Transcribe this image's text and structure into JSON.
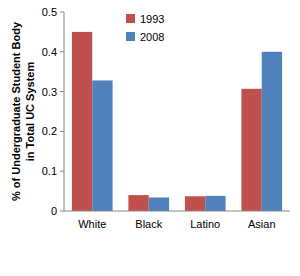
{
  "chart_data": {
    "type": "bar",
    "y_label": "% of Undergraduate Student Body in Total UC System",
    "categories": [
      "White",
      "Black",
      "Latino",
      "Asian"
    ],
    "series": [
      {
        "name": "1993",
        "color": "#c0504d",
        "values": [
          0.45,
          0.04,
          0.037,
          0.307
        ]
      },
      {
        "name": "2008",
        "color": "#4f81bd",
        "values": [
          0.328,
          0.034,
          0.038,
          0.4
        ]
      }
    ],
    "ylim": [
      0,
      0.5
    ],
    "yticks": [
      0,
      0.1,
      0.2,
      0.3,
      0.4,
      0.5
    ],
    "grid": false,
    "legend": "top"
  }
}
